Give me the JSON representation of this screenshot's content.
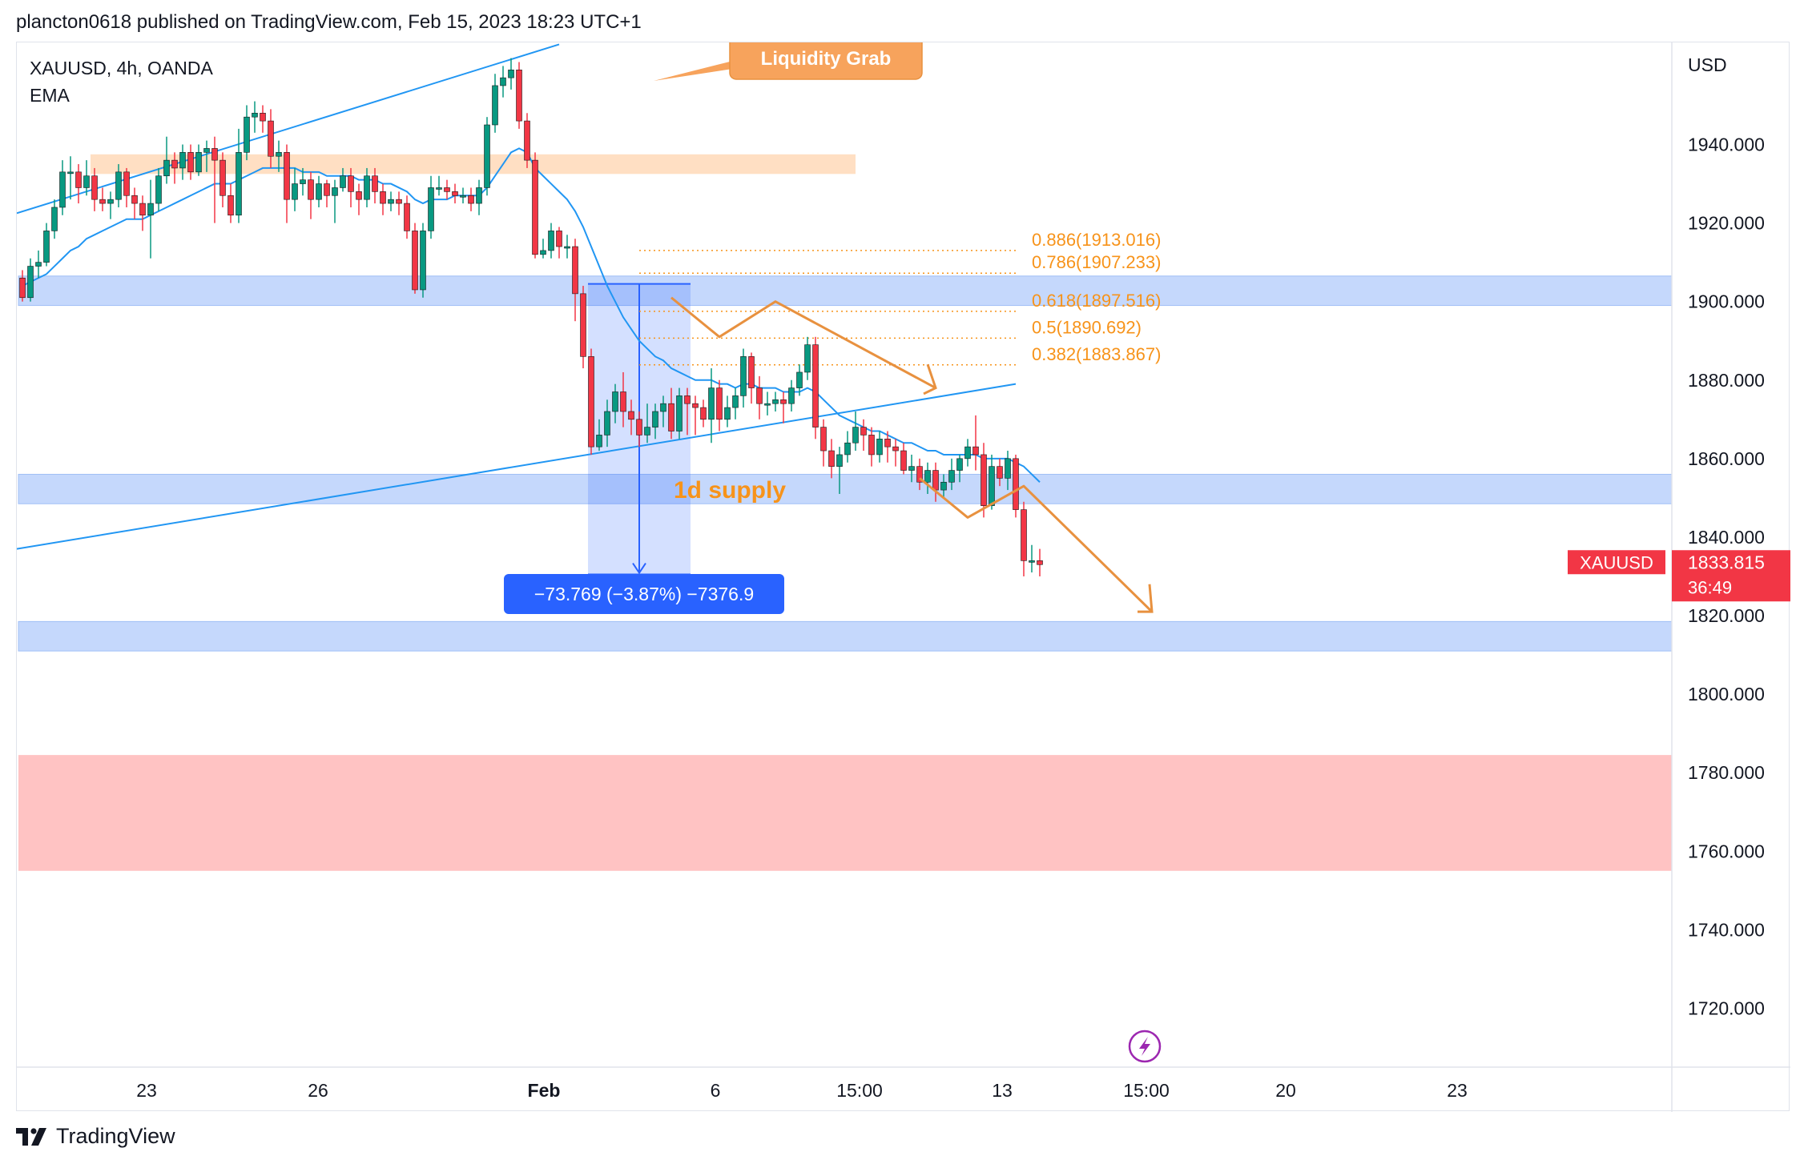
{
  "header": {
    "text": "plancton0618 published on TradingView.com, Feb 15, 2023 18:23 UTC+1"
  },
  "footer": {
    "brand": "TradingView",
    "logo": "tradingview-logo-icon"
  },
  "chart_data": {
    "type": "candlestick",
    "title": "XAUUSD, 4h, OANDA",
    "indicator": "EMA",
    "currency": "USD",
    "ylim": [
      1705,
      1966
    ],
    "y_ticks": [
      "1940.000",
      "1920.000",
      "1900.000",
      "1880.000",
      "1860.000",
      "1840.000",
      "1820.000",
      "1800.000",
      "1780.000",
      "1760.000",
      "1740.000",
      "1720.000"
    ],
    "x_ticks": [
      "23",
      "26",
      "Feb",
      "6",
      "15:00",
      "13",
      "15:00",
      "20",
      "23"
    ],
    "last_price": {
      "symbol": "XAUUSD",
      "price": "1833.815",
      "countdown": "36:49",
      "color": "#f23645"
    },
    "colors": {
      "up": "#089981",
      "down": "#f23645",
      "ema": "#2196f3",
      "zone": "#bbd2fc",
      "fib": "#f7931a",
      "trend": "#2196f3",
      "pattern": "#e8913f",
      "demand": "#ffb8b8"
    },
    "candles": [
      [
        1906,
        1901,
        1908,
        1900
      ],
      [
        1901,
        1909,
        1911,
        1900
      ],
      [
        1909,
        1910,
        1913,
        1906
      ],
      [
        1910,
        1918,
        1920,
        1909
      ],
      [
        1918,
        1924,
        1926,
        1916
      ],
      [
        1924,
        1933,
        1936,
        1922
      ],
      [
        1933,
        1933,
        1937,
        1926
      ],
      [
        1933,
        1929,
        1935,
        1925
      ],
      [
        1929,
        1932,
        1936,
        1927
      ],
      [
        1932,
        1926,
        1934,
        1923
      ],
      [
        1926,
        1925,
        1929,
        1923
      ],
      [
        1925,
        1926,
        1928,
        1921
      ],
      [
        1926,
        1933,
        1935,
        1924
      ],
      [
        1933,
        1927,
        1934,
        1924
      ],
      [
        1927,
        1925,
        1929,
        1921
      ],
      [
        1925,
        1922,
        1927,
        1918
      ],
      [
        1922,
        1925,
        1931,
        1911
      ],
      [
        1925,
        1932,
        1934,
        1923
      ],
      [
        1932,
        1936,
        1942,
        1930
      ],
      [
        1936,
        1934,
        1938,
        1930
      ],
      [
        1934,
        1938,
        1940,
        1931
      ],
      [
        1938,
        1933,
        1940,
        1931
      ],
      [
        1933,
        1938,
        1940,
        1932
      ],
      [
        1938,
        1939,
        1941,
        1933
      ],
      [
        1939,
        1936,
        1942,
        1920
      ],
      [
        1936,
        1927,
        1938,
        1924
      ],
      [
        1927,
        1922,
        1930,
        1920
      ],
      [
        1922,
        1938,
        1944,
        1920
      ],
      [
        1938,
        1947,
        1950,
        1936
      ],
      [
        1947,
        1948,
        1951,
        1943
      ],
      [
        1948,
        1946,
        1950,
        1943
      ],
      [
        1946,
        1937,
        1949,
        1934
      ],
      [
        1937,
        1938,
        1941,
        1933
      ],
      [
        1938,
        1926,
        1940,
        1920
      ],
      [
        1926,
        1930,
        1934,
        1923
      ],
      [
        1930,
        1931,
        1934,
        1927
      ],
      [
        1931,
        1926,
        1933,
        1921
      ],
      [
        1926,
        1930,
        1932,
        1924
      ],
      [
        1930,
        1927,
        1931,
        1924
      ],
      [
        1927,
        1929,
        1931,
        1920
      ],
      [
        1929,
        1932,
        1934,
        1928
      ],
      [
        1932,
        1928,
        1934,
        1924
      ],
      [
        1928,
        1926,
        1930,
        1922
      ],
      [
        1926,
        1932,
        1934,
        1924
      ],
      [
        1932,
        1928,
        1934,
        1925
      ],
      [
        1928,
        1925,
        1930,
        1922
      ],
      [
        1925,
        1926,
        1928,
        1923
      ],
      [
        1926,
        1925,
        1928,
        1922
      ],
      [
        1925,
        1918,
        1927,
        1916
      ],
      [
        1918,
        1903,
        1920,
        1902
      ],
      [
        1903,
        1918,
        1920,
        1901
      ],
      [
        1918,
        1929,
        1932,
        1916
      ],
      [
        1929,
        1929,
        1932,
        1927
      ],
      [
        1929,
        1928,
        1931,
        1926
      ],
      [
        1928,
        1927,
        1930,
        1925
      ],
      [
        1927,
        1927,
        1929,
        1925
      ],
      [
        1927,
        1925,
        1929,
        1923
      ],
      [
        1925,
        1929,
        1931,
        1922
      ],
      [
        1929,
        1945,
        1947,
        1927
      ],
      [
        1945,
        1955,
        1958,
        1943
      ],
      [
        1955,
        1957,
        1960,
        1952
      ],
      [
        1957,
        1959,
        1962,
        1954
      ],
      [
        1959,
        1946,
        1961,
        1944
      ],
      [
        1946,
        1936,
        1948,
        1934
      ],
      [
        1936,
        1912,
        1938,
        1911
      ],
      [
        1912,
        1913,
        1916,
        1911
      ],
      [
        1913,
        1918,
        1920,
        1911
      ],
      [
        1918,
        1914,
        1919,
        1911
      ],
      [
        1914,
        1914,
        1917,
        1911
      ],
      [
        1914,
        1902,
        1916,
        1895
      ],
      [
        1902,
        1886,
        1904,
        1883
      ],
      [
        1886,
        1863,
        1888,
        1861
      ],
      [
        1863,
        1866,
        1870,
        1862
      ],
      [
        1866,
        1872,
        1875,
        1863
      ],
      [
        1872,
        1877,
        1879,
        1869
      ],
      [
        1877,
        1872,
        1882,
        1868
      ],
      [
        1872,
        1870,
        1875,
        1866
      ],
      [
        1870,
        1866,
        1872,
        1863
      ],
      [
        1866,
        1868,
        1874,
        1864
      ],
      [
        1868,
        1872,
        1874,
        1865
      ],
      [
        1872,
        1874,
        1876,
        1868
      ],
      [
        1874,
        1867,
        1878,
        1865
      ],
      [
        1867,
        1876,
        1878,
        1865
      ],
      [
        1876,
        1874,
        1878,
        1866
      ],
      [
        1874,
        1873,
        1876,
        1866
      ],
      [
        1873,
        1870,
        1875,
        1868
      ],
      [
        1870,
        1878,
        1883,
        1864
      ],
      [
        1878,
        1870,
        1880,
        1867
      ],
      [
        1870,
        1873,
        1876,
        1868
      ],
      [
        1873,
        1876,
        1878,
        1870
      ],
      [
        1876,
        1886,
        1888,
        1873
      ],
      [
        1886,
        1878,
        1887,
        1874
      ],
      [
        1878,
        1874,
        1881,
        1870
      ],
      [
        1874,
        1874,
        1877,
        1871
      ],
      [
        1874,
        1875,
        1877,
        1872
      ],
      [
        1875,
        1874,
        1877,
        1869
      ],
      [
        1874,
        1878,
        1880,
        1872
      ],
      [
        1878,
        1882,
        1884,
        1876
      ],
      [
        1882,
        1889,
        1891,
        1880
      ],
      [
        1889,
        1868,
        1891,
        1865
      ],
      [
        1868,
        1862,
        1870,
        1858
      ],
      [
        1862,
        1858,
        1865,
        1855
      ],
      [
        1858,
        1861,
        1863,
        1851
      ],
      [
        1861,
        1864,
        1867,
        1859
      ],
      [
        1864,
        1868,
        1872,
        1862
      ],
      [
        1868,
        1866,
        1870,
        1862
      ],
      [
        1866,
        1861,
        1868,
        1858
      ],
      [
        1861,
        1865,
        1867,
        1859
      ],
      [
        1865,
        1863,
        1867,
        1859
      ],
      [
        1863,
        1862,
        1865,
        1858
      ],
      [
        1862,
        1857,
        1864,
        1856
      ],
      [
        1857,
        1858,
        1861,
        1854
      ],
      [
        1858,
        1854,
        1860,
        1852
      ],
      [
        1854,
        1857,
        1859,
        1851
      ],
      [
        1857,
        1852,
        1859,
        1849
      ],
      [
        1852,
        1854,
        1856,
        1850
      ],
      [
        1854,
        1857,
        1860,
        1852
      ],
      [
        1857,
        1860,
        1861,
        1854
      ],
      [
        1860,
        1863,
        1865,
        1858
      ],
      [
        1863,
        1861,
        1871,
        1857
      ],
      [
        1861,
        1848,
        1864,
        1845
      ],
      [
        1848,
        1858,
        1861,
        1847
      ],
      [
        1858,
        1855,
        1860,
        1853
      ],
      [
        1855,
        1860,
        1862,
        1852
      ],
      [
        1860,
        1847,
        1861,
        1845
      ],
      [
        1847,
        1834,
        1849,
        1830
      ],
      [
        1834,
        1834,
        1838,
        1831
      ],
      [
        1834,
        1833,
        1837,
        1830
      ]
    ],
    "ema": [
      1904,
      1905,
      1906,
      1907,
      1909,
      1911,
      1913,
      1914,
      1916,
      1917,
      1918,
      1919,
      1920,
      1921,
      1921,
      1921,
      1922,
      1923,
      1924,
      1925,
      1926,
      1927,
      1928,
      1929,
      1930,
      1930,
      1930,
      1931,
      1932,
      1933,
      1934,
      1934,
      1934,
      1934,
      1934,
      1933,
      1933,
      1933,
      1932,
      1932,
      1932,
      1932,
      1931,
      1931,
      1931,
      1930,
      1930,
      1929,
      1928,
      1926,
      1925,
      1926,
      1926,
      1926,
      1927,
      1927,
      1927,
      1927,
      1929,
      1932,
      1935,
      1938,
      1939,
      1938,
      1934,
      1932,
      1930,
      1928,
      1926,
      1923,
      1919,
      1914,
      1909,
      1904,
      1900,
      1896,
      1893,
      1890,
      1888,
      1886,
      1885,
      1883,
      1882,
      1881,
      1880,
      1880,
      1880,
      1879,
      1879,
      1878,
      1879,
      1879,
      1878,
      1878,
      1878,
      1877,
      1877,
      1877,
      1878,
      1877,
      1875,
      1873,
      1871,
      1870,
      1869,
      1868,
      1867,
      1867,
      1866,
      1865,
      1864,
      1864,
      1863,
      1862,
      1862,
      1861,
      1861,
      1861,
      1861,
      1861,
      1860,
      1860,
      1860,
      1860,
      1859,
      1858,
      1856,
      1854
    ],
    "zones": [
      {
        "name": "resistance-zone",
        "from": 1932.5,
        "to": 1937.5,
        "start": 9,
        "end": 104,
        "color": "#ffd9b8"
      },
      {
        "name": "supply-zone-1900",
        "from": 1899,
        "to": 1906.5,
        "start": 0,
        "end": 214,
        "color": "#bbd2fc"
      },
      {
        "name": "supply-zone-1d",
        "from": 1848.5,
        "to": 1856,
        "start": 0,
        "end": 214,
        "color": "#bbd2fc"
      },
      {
        "name": "support-zone-1820",
        "from": 1811,
        "to": 1818.5,
        "start": 0,
        "end": 214,
        "color": "#bbd2fc"
      },
      {
        "name": "demand-zone",
        "from": 1755,
        "to": 1784.5,
        "start": 0,
        "end": 214,
        "color": "#ffb8b8"
      }
    ],
    "labels": {
      "liquidity_grab": "Liquidity Grab",
      "supply": "1d supply",
      "measure": "−73.769 (−3.87%) −7376.9"
    },
    "fib_levels": [
      {
        "label": "0.886(1913.016)",
        "value": 1913.016
      },
      {
        "label": "0.786(1907.233)",
        "value": 1907.233
      },
      {
        "label": "0.618(1897.516)",
        "value": 1897.516
      },
      {
        "label": "0.5(1890.692)",
        "value": 1890.692
      },
      {
        "label": "0.382(1883.867)",
        "value": 1883.867
      }
    ]
  }
}
